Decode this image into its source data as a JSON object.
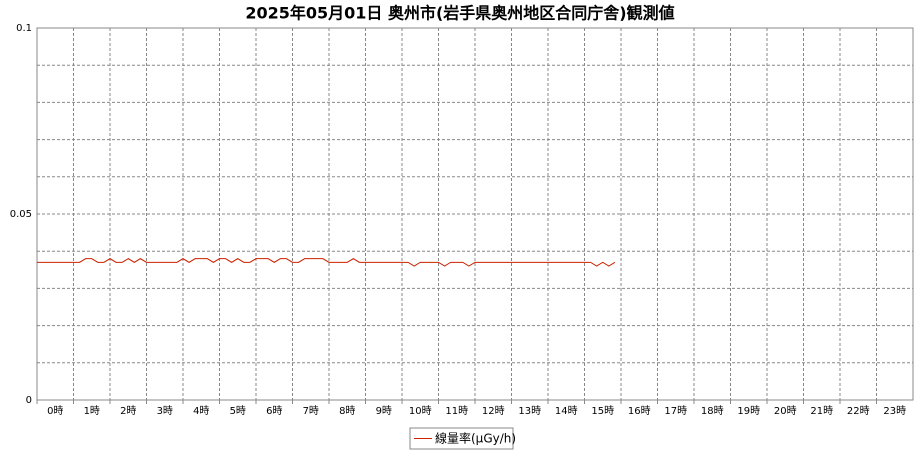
{
  "chart_data": {
    "type": "line",
    "title": "2025年05月01日 奥州市(岩手県奥州地区合同庁舎)観測値",
    "categories": [
      "0時",
      "1時",
      "2時",
      "3時",
      "4時",
      "5時",
      "6時",
      "7時",
      "8時",
      "9時",
      "10時",
      "11時",
      "12時",
      "13時",
      "14時",
      "15時",
      "16時",
      "17時",
      "18時",
      "19時",
      "20時",
      "21時",
      "22時",
      "23時"
    ],
    "xlim": [
      0,
      24
    ],
    "x": [
      0,
      0.167,
      0.333,
      0.5,
      0.667,
      0.833,
      1,
      1.167,
      1.333,
      1.5,
      1.667,
      1.833,
      2,
      2.167,
      2.333,
      2.5,
      2.667,
      2.833,
      3,
      3.167,
      3.333,
      3.5,
      3.667,
      3.833,
      4,
      4.167,
      4.333,
      4.5,
      4.667,
      4.833,
      5,
      5.167,
      5.333,
      5.5,
      5.667,
      5.833,
      6,
      6.167,
      6.333,
      6.5,
      6.667,
      6.833,
      7,
      7.167,
      7.333,
      7.5,
      7.667,
      7.833,
      8,
      8.167,
      8.333,
      8.5,
      8.667,
      8.833,
      9,
      9.167,
      9.333,
      9.5,
      9.667,
      9.833,
      10,
      10.167,
      10.333,
      10.5,
      10.667,
      10.833,
      11,
      11.167,
      11.333,
      11.5,
      11.667,
      11.833,
      12,
      12.167,
      12.333,
      12.5,
      12.667,
      12.833,
      13,
      13.167,
      13.333,
      13.5,
      13.667,
      13.833,
      14,
      14.167,
      14.333,
      14.5,
      14.667,
      14.833,
      15,
      15.167,
      15.333,
      15.5,
      15.667,
      15.833
    ],
    "series": [
      {
        "name": "線量率(μGy/h)",
        "color": "#cc2200",
        "values": [
          0.037,
          0.037,
          0.037,
          0.037,
          0.037,
          0.037,
          0.037,
          0.037,
          0.038,
          0.038,
          0.037,
          0.037,
          0.038,
          0.037,
          0.037,
          0.038,
          0.037,
          0.038,
          0.037,
          0.037,
          0.037,
          0.037,
          0.037,
          0.037,
          0.038,
          0.037,
          0.038,
          0.038,
          0.038,
          0.037,
          0.038,
          0.038,
          0.037,
          0.038,
          0.037,
          0.037,
          0.038,
          0.038,
          0.038,
          0.037,
          0.038,
          0.038,
          0.037,
          0.037,
          0.038,
          0.038,
          0.038,
          0.038,
          0.037,
          0.037,
          0.037,
          0.037,
          0.038,
          0.037,
          0.037,
          0.037,
          0.037,
          0.037,
          0.037,
          0.037,
          0.037,
          0.037,
          0.036,
          0.037,
          0.037,
          0.037,
          0.037,
          0.036,
          0.037,
          0.037,
          0.037,
          0.036,
          0.037,
          0.037,
          0.037,
          0.037,
          0.037,
          0.037,
          0.037,
          0.037,
          0.037,
          0.037,
          0.037,
          0.037,
          0.037,
          0.037,
          0.037,
          0.037,
          0.037,
          0.037,
          0.037,
          0.037,
          0.036,
          0.037,
          0.036,
          0.037
        ]
      }
    ],
    "ylim": [
      0,
      0.1
    ],
    "yticks": [
      0,
      0.05,
      0.1
    ],
    "y_minor_ticks": [
      0.01,
      0.02,
      0.03,
      0.04,
      0.06,
      0.07,
      0.08,
      0.09
    ],
    "grid": true,
    "legend": "bottom"
  }
}
